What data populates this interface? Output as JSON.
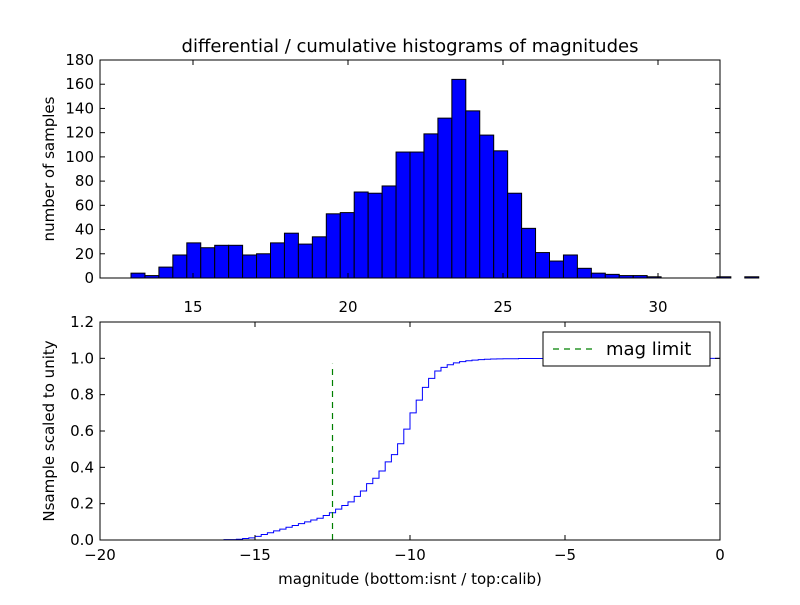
{
  "chart_data": [
    {
      "type": "bar",
      "title": "differential / cumulative histograms of magnitudes",
      "xlabel": "",
      "ylabel": "number of samples",
      "xlim": [
        12.0,
        32.0
      ],
      "ylim": [
        0,
        180
      ],
      "xticks": [
        15,
        20,
        25,
        30
      ],
      "yticks": [
        0,
        20,
        40,
        60,
        80,
        100,
        120,
        140,
        160,
        180
      ],
      "bin_start": 13.0,
      "bin_width": 0.45,
      "values": [
        4,
        2,
        9,
        19,
        29,
        25,
        27,
        27,
        19,
        20,
        29,
        37,
        28,
        34,
        53,
        54,
        71,
        70,
        76,
        104,
        104,
        119,
        132,
        164,
        138,
        118,
        105,
        70,
        41,
        21,
        14,
        19,
        8,
        4,
        3,
        2,
        2,
        1,
        0,
        0,
        0,
        0,
        1,
        0,
        1
      ],
      "bar_color": "#0000ff",
      "edge_color": "#000000"
    },
    {
      "type": "line",
      "title": "",
      "xlabel": "magnitude (bottom:isnt / top:calib)",
      "ylabel": "Nsample scaled to unity",
      "xlim": [
        -20,
        0
      ],
      "ylim": [
        0.0,
        1.2
      ],
      "xticks": [
        -20,
        -15,
        -10,
        -5,
        0
      ],
      "xtick_labels": [
        "−20",
        "−15",
        "−10",
        "−5",
        "0"
      ],
      "yticks": [
        0.0,
        0.2,
        0.4,
        0.6,
        0.8,
        1.0,
        1.2
      ],
      "ytick_labels": [
        "0.0",
        "0.2",
        "0.4",
        "0.6",
        "0.8",
        "1.0",
        "1.2"
      ],
      "series": [
        {
          "name": "cumulative",
          "style": "step",
          "color": "#0000ff",
          "x": [
            -20,
            -16.0,
            -15.6,
            -15.4,
            -15.2,
            -15.0,
            -14.8,
            -14.6,
            -14.4,
            -14.2,
            -14.0,
            -13.8,
            -13.6,
            -13.4,
            -13.2,
            -13.0,
            -12.8,
            -12.6,
            -12.4,
            -12.2,
            -12.0,
            -11.8,
            -11.6,
            -11.4,
            -11.2,
            -11.0,
            -10.8,
            -10.6,
            -10.4,
            -10.2,
            -10.0,
            -9.8,
            -9.6,
            -9.4,
            -9.2,
            -9.0,
            -8.8,
            -8.6,
            -8.4,
            -8.2,
            -8.0,
            -7.8,
            -7.6,
            -7.4,
            -7.2,
            -7.0,
            -6.5,
            -6.0,
            -5.0,
            -4.0,
            -3.0,
            -2.0,
            -1.0,
            -0.05
          ],
          "y": [
            0.0,
            0.002,
            0.004,
            0.008,
            0.012,
            0.02,
            0.03,
            0.04,
            0.05,
            0.06,
            0.07,
            0.08,
            0.09,
            0.1,
            0.11,
            0.12,
            0.135,
            0.15,
            0.17,
            0.19,
            0.21,
            0.24,
            0.27,
            0.31,
            0.34,
            0.38,
            0.43,
            0.47,
            0.53,
            0.61,
            0.7,
            0.77,
            0.84,
            0.89,
            0.93,
            0.95,
            0.965,
            0.975,
            0.982,
            0.987,
            0.99,
            0.993,
            0.995,
            0.996,
            0.997,
            0.998,
            0.999,
            0.999,
            0.9995,
            1.0,
            1.0,
            1.0,
            1.0,
            1.0
          ]
        },
        {
          "name": "mag limit",
          "style": "dashed-vline",
          "color": "#008000",
          "x": -12.5,
          "y_range": [
            0.0,
            0.97
          ]
        }
      ],
      "legend": {
        "entries": [
          "mag limit"
        ],
        "placement": "top-right"
      }
    }
  ]
}
